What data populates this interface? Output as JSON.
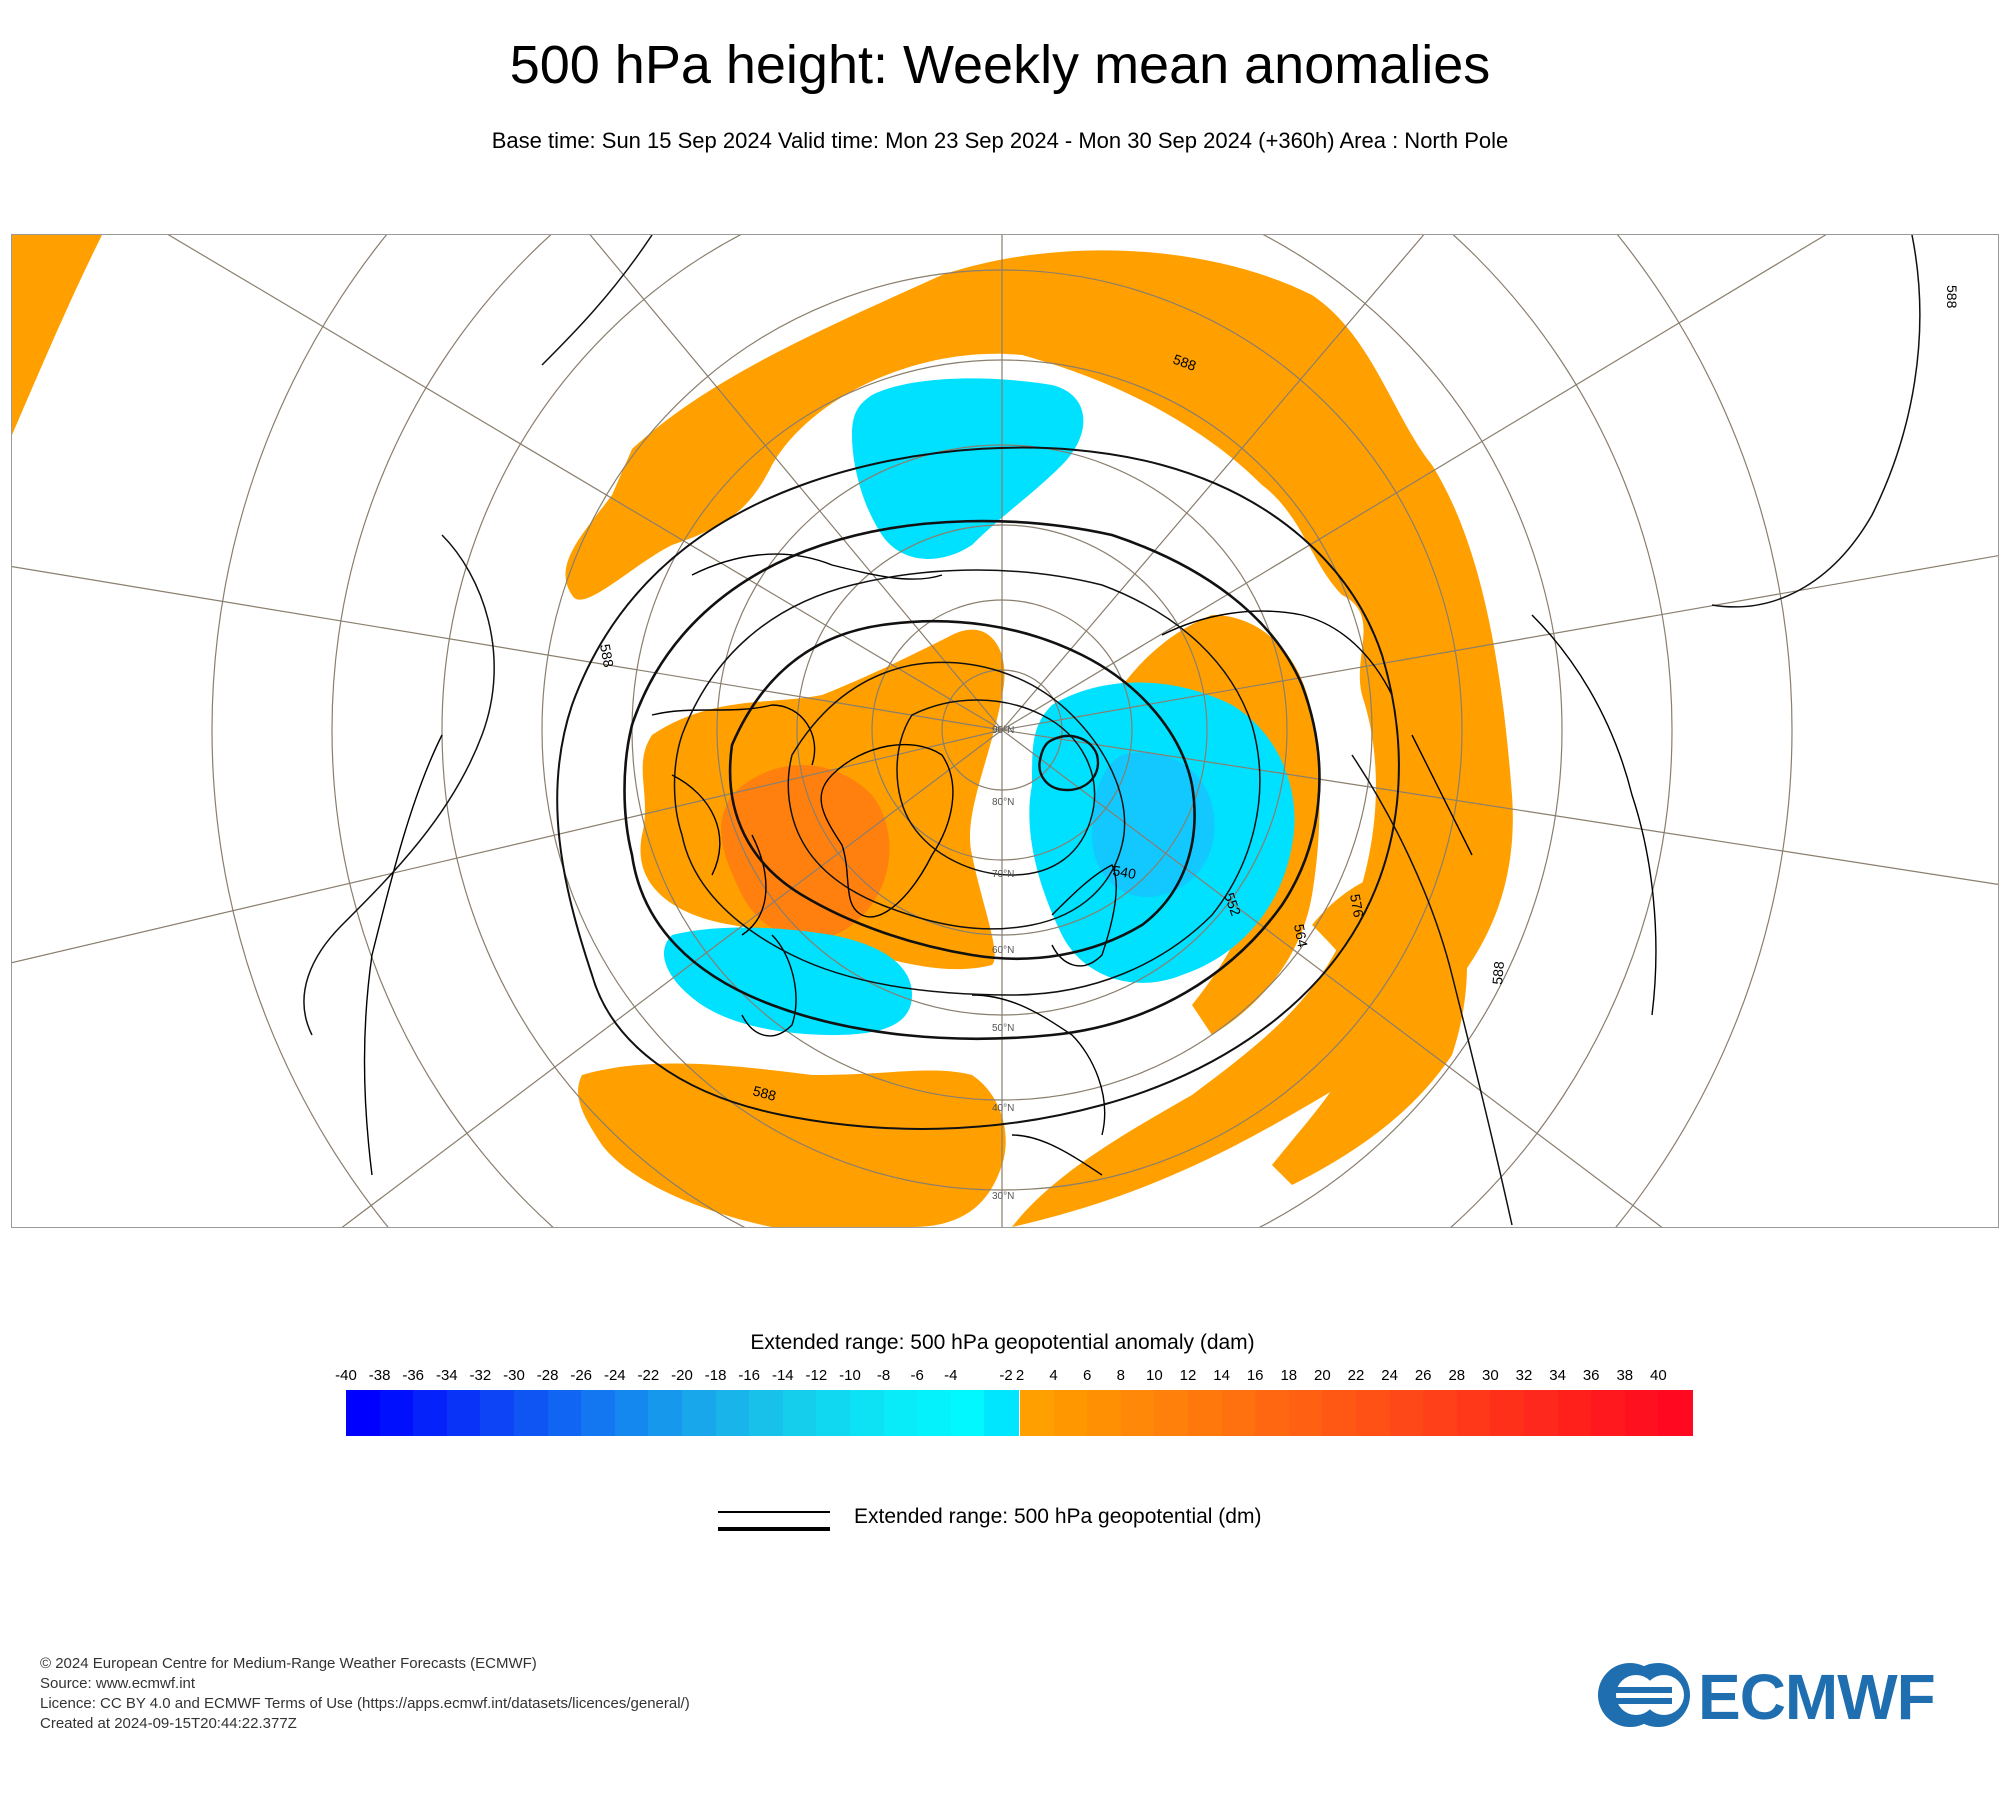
{
  "title": "500 hPa height: Weekly mean anomalies",
  "subtitle": "Base time: Sun 15 Sep 2024 Valid time: Mon 23 Sep 2024 - Mon 30 Sep 2024 (+360h) Area : North Pole",
  "map": {
    "latitude_labels": [
      "90°N",
      "80°N",
      "70°N",
      "60°N",
      "50°N",
      "40°N",
      "30°N"
    ],
    "contour_labels": [
      "588",
      "588",
      "588",
      "588",
      "588",
      "576",
      "564",
      "552",
      "540"
    ],
    "colors": {
      "positive_anomaly": "#ffa000",
      "positive_anomaly_strong": "#ff7a10",
      "positive_anomaly_max": "#ff5a10",
      "negative_anomaly": "#00e0ff",
      "negative_anomaly_strong": "#20b8ff",
      "grid": "#8a7e6e",
      "coast": "#000000"
    }
  },
  "legend": {
    "anomaly_title": "Extended range: 500 hPa geopotential anomaly (dam)",
    "ticks": [
      "-40",
      "-38",
      "-36",
      "-34",
      "-32",
      "-30",
      "-28",
      "-26",
      "-24",
      "-22",
      "-20",
      "-18",
      "-16",
      "-14",
      "-12",
      "-10",
      "-8",
      "-6",
      "-4",
      "-2",
      "2",
      "4",
      "6",
      "8",
      "10",
      "12",
      "14",
      "16",
      "18",
      "20",
      "22",
      "24",
      "26",
      "28",
      "30",
      "32",
      "34",
      "36",
      "38",
      "40"
    ],
    "negative_colors": [
      "#0000ff",
      "#0010ff",
      "#0622fb",
      "#0a33f8",
      "#0c44f6",
      "#0e55f4",
      "#1066f2",
      "#1277f0",
      "#1488ee",
      "#1699ec",
      "#18a7ea",
      "#18b4ea",
      "#18c1ea",
      "#14ceec",
      "#10d8f0",
      "#0ce2f4",
      "#08ebf8",
      "#04f2fb",
      "#00f8fe",
      "#00e6ff"
    ],
    "positive_colors": [
      "#ffa000",
      "#ff9800",
      "#ff9004",
      "#ff8808",
      "#ff800a",
      "#ff780c",
      "#ff700e",
      "#ff6810",
      "#ff6012",
      "#ff5814",
      "#ff5016",
      "#ff4818",
      "#ff4018",
      "#ff381a",
      "#ff301a",
      "#ff281c",
      "#ff201c",
      "#ff181e",
      "#ff101e",
      "#ff0820"
    ],
    "contour_title": "Extended range: 500 hPa geopotential (dm)"
  },
  "footer": {
    "line1": "© 2024 European Centre for Medium-Range Weather Forecasts (ECMWF)",
    "line2": "Source: www.ecmwf.int",
    "line3": "Licence: CC BY 4.0 and ECMWF Terms of Use (https://apps.ecmwf.int/datasets/licences/general/)",
    "line4": "Created at 2024-09-15T20:44:22.377Z"
  },
  "logo": {
    "text": "ECMWF",
    "color": "#1f6fb0"
  }
}
